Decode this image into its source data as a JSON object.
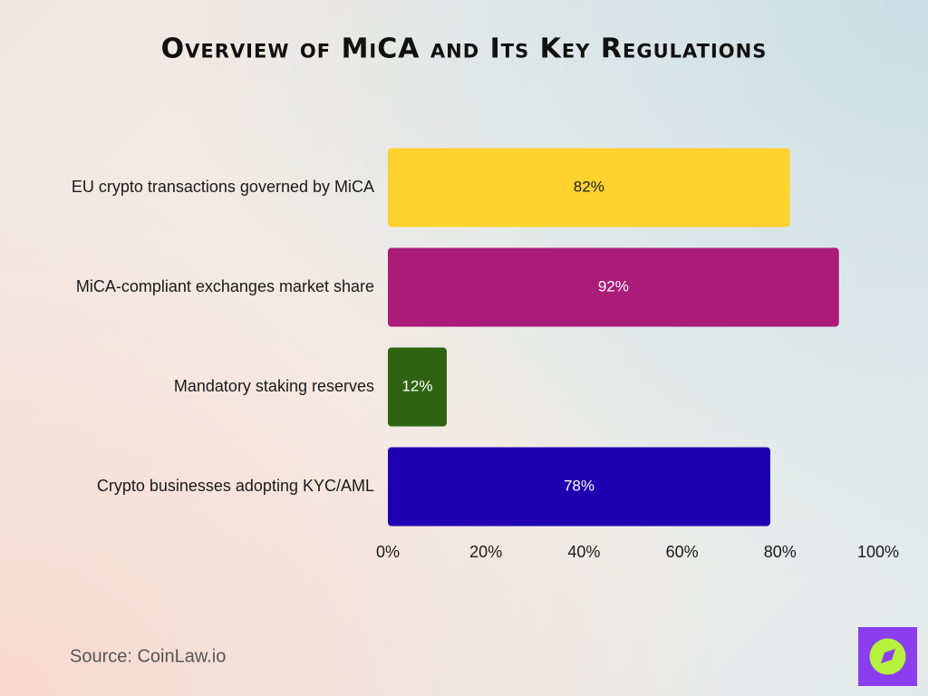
{
  "chart_data": {
    "type": "bar",
    "orientation": "horizontal",
    "title": "Overview of MiCA and Its Key Regulations",
    "categories": [
      "EU crypto transactions governed by MiCA",
      "MiCA-compliant exchanges market share",
      "Mandatory staking reserves",
      "Crypto businesses adopting KYC/AML"
    ],
    "values": [
      82,
      92,
      12,
      78
    ],
    "value_labels": [
      "82%",
      "92%",
      "12%",
      "78%"
    ],
    "colors": [
      "#ffd22e",
      "#aa1c78",
      "#2f6312",
      "#1e00b0"
    ],
    "xlim": [
      0,
      100
    ],
    "xticks": [
      {
        "value": 0,
        "label": "0%"
      },
      {
        "value": 20,
        "label": "20%"
      },
      {
        "value": 40,
        "label": "40%"
      },
      {
        "value": 60,
        "label": "60%"
      },
      {
        "value": 80,
        "label": "80%"
      },
      {
        "value": 100,
        "label": "100%"
      }
    ],
    "grid": false,
    "source": "Source: CoinLaw.io"
  }
}
